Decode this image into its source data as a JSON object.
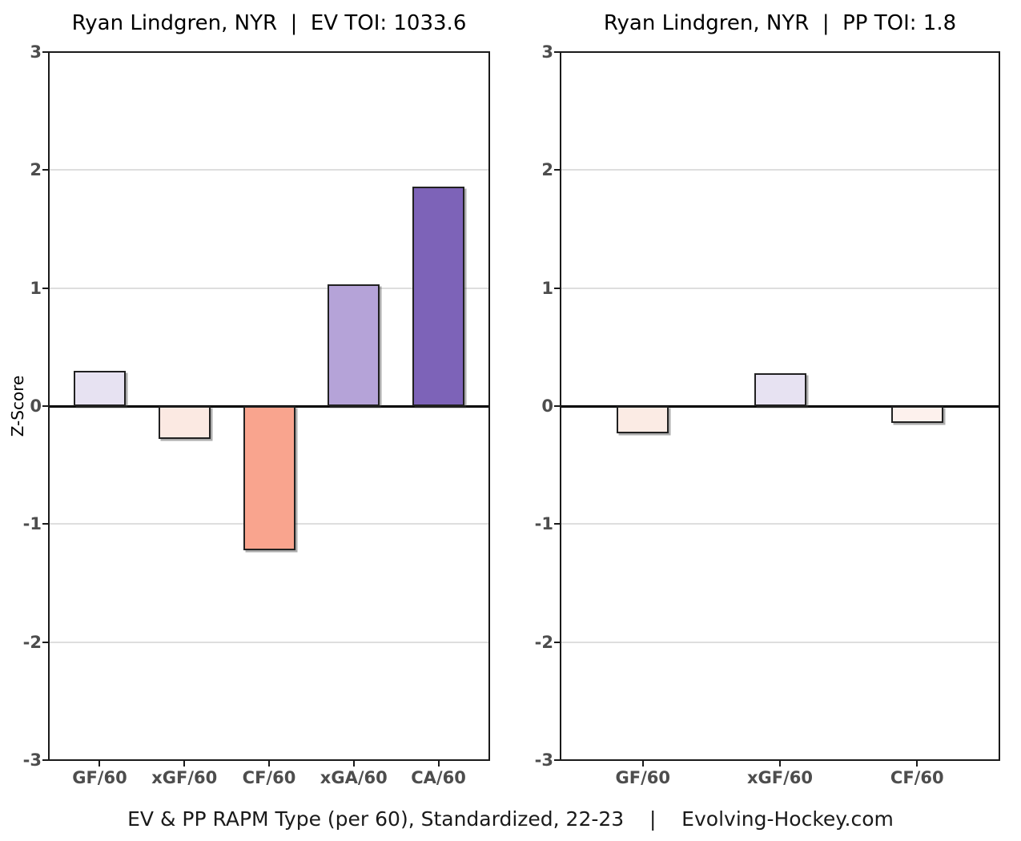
{
  "figure": {
    "caption": "EV & PP RAPM Type (per 60), Standardized, 22-23    |    Evolving-Hockey.com"
  },
  "colors": {
    "axis_text": "#4d4d4d",
    "gridline": "#dedede",
    "spine": "#1a1a1a",
    "zero_line": "#000000",
    "bar_edge": "#212121",
    "background": "#ffffff"
  },
  "chart_data": [
    {
      "type": "bar",
      "title": "Ryan Lindgren, NYR  |  EV TOI: 1033.6",
      "ylabel": "Z-Score",
      "xlabel": "",
      "ylim": [
        -3,
        3
      ],
      "yticks": [
        3,
        2,
        1,
        0,
        -1,
        -2,
        -3
      ],
      "grid": "horizontal-major",
      "legend": "none",
      "categories": [
        "GF/60",
        "xGF/60",
        "CF/60",
        "xGA/60",
        "CA/60"
      ],
      "values": [
        0.3,
        -0.28,
        -1.22,
        1.03,
        1.86
      ],
      "bar_colors": [
        "#e7e2f2",
        "#fbe9e2",
        "#f9a48e",
        "#b5a3d8",
        "#7d63b8"
      ]
    },
    {
      "type": "bar",
      "title": "Ryan Lindgren, NYR  |  PP TOI: 1.8",
      "ylabel": "",
      "xlabel": "",
      "ylim": [
        -3,
        3
      ],
      "yticks": [
        3,
        2,
        1,
        0,
        -1,
        -2,
        -3
      ],
      "grid": "horizontal-major",
      "legend": "none",
      "categories": [
        "GF/60",
        "xGF/60",
        "CF/60"
      ],
      "values": [
        -0.23,
        0.28,
        -0.14
      ],
      "bar_colors": [
        "#fbebe4",
        "#e7e2f2",
        "#fdf1ed"
      ]
    }
  ]
}
